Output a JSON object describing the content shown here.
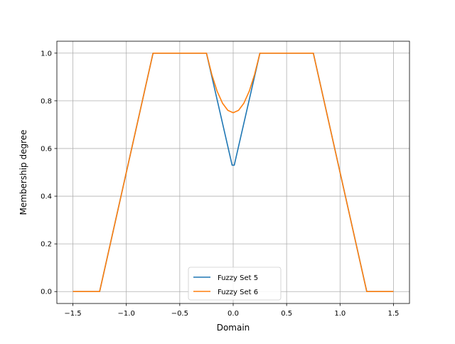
{
  "chart_data": {
    "type": "line",
    "xlabel": "Domain",
    "ylabel": "Membership degree",
    "xlim": [
      -1.65,
      1.65
    ],
    "ylim": [
      -0.05,
      1.05
    ],
    "xticks": [
      -1.5,
      -1.0,
      -0.5,
      0.0,
      0.5,
      1.0,
      1.5
    ],
    "xtick_labels": [
      "−1.5",
      "−1.0",
      "−0.5",
      "0.0",
      "0.5",
      "1.0",
      "1.5"
    ],
    "yticks": [
      0.0,
      0.2,
      0.4,
      0.6,
      0.8,
      1.0
    ],
    "ytick_labels": [
      "0.0",
      "0.2",
      "0.4",
      "0.6",
      "0.8",
      "1.0"
    ],
    "grid": true,
    "legend_position": "lower-center",
    "series": [
      {
        "name": "Fuzzy Set 5",
        "color": "#1f77b4",
        "x": [
          -1.5,
          -1.25,
          -0.75,
          -0.25,
          -0.01,
          0.01,
          0.25,
          0.75,
          1.25,
          1.5
        ],
        "y": [
          0.0,
          0.0,
          1.0,
          1.0,
          0.53,
          0.53,
          1.0,
          1.0,
          0.0,
          0.0
        ]
      },
      {
        "name": "Fuzzy Set 6",
        "color": "#ff7f0e",
        "x": [
          -1.5,
          -1.25,
          -0.75,
          -0.25,
          -0.2,
          -0.15,
          -0.1,
          -0.05,
          0.0,
          0.05,
          0.1,
          0.15,
          0.2,
          0.25,
          0.75,
          1.25,
          1.5
        ],
        "y": [
          0.0,
          0.0,
          1.0,
          1.0,
          0.91,
          0.84,
          0.79,
          0.76,
          0.75,
          0.76,
          0.79,
          0.84,
          0.91,
          1.0,
          1.0,
          0.0,
          0.0
        ]
      }
    ]
  }
}
